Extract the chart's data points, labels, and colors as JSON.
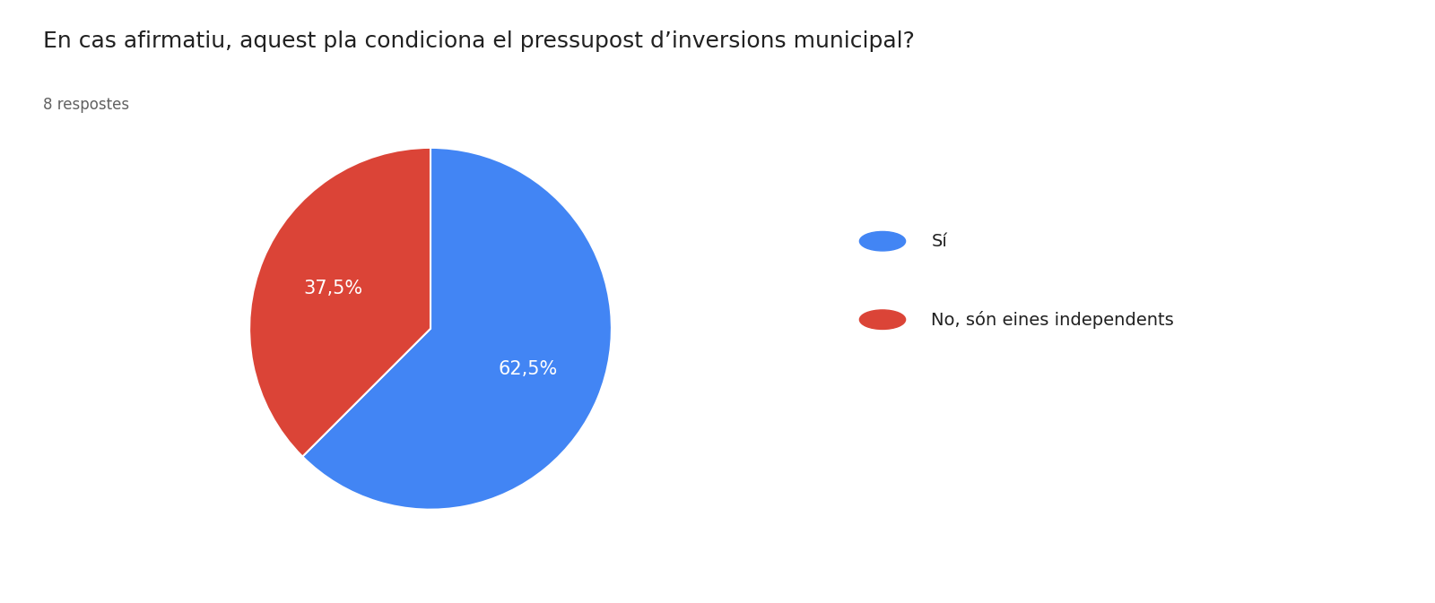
{
  "title": "En cas afirmatiu, aquest pla condiciona el pressupost d’inversions municipal?",
  "subtitle": "8 respostes",
  "labels": [
    "Sí",
    "No, són eines independents"
  ],
  "values": [
    62.5,
    37.5
  ],
  "colors": [
    "#4285F4",
    "#DB4437"
  ],
  "pct_labels": [
    "62,5%",
    "37,5%"
  ],
  "title_fontsize": 18,
  "subtitle_fontsize": 12,
  "legend_fontsize": 14,
  "pct_fontsize": 15,
  "background_color": "#ffffff",
  "start_angle": 90,
  "text_color": "#212121",
  "subtitle_color": "#616161"
}
